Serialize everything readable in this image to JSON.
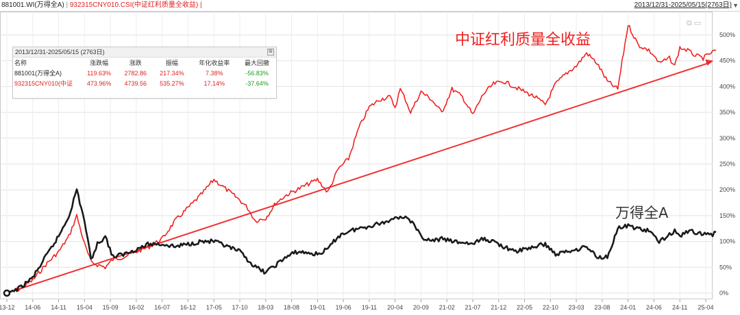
{
  "header": {
    "series1_label": "881001.WI(万得全A)",
    "separator": "|",
    "series2_label": "932315CNY010.CSI(中证红利质量全收益)",
    "separator2": "|",
    "range": "2013/12/31-2025/05/15(2763日)",
    "range_arrow": "▼"
  },
  "stats_panel": {
    "title": "2013/12/31-2025/05/15 (2763日)",
    "close": "⊠",
    "columns": [
      "名称",
      "涨跌幅",
      "涨跌",
      "振幅",
      "年化收益率",
      "最大回撤"
    ],
    "rows": [
      {
        "name": "881001(万得全A)",
        "change_pct": "119.63%",
        "change": "2782.86",
        "amplitude": "217.34%",
        "annual_return": "7.38%",
        "max_drawdown": "-56.83%"
      },
      {
        "name": "932315CNY010(中证",
        "change_pct": "473.96%",
        "change": "4739.56",
        "amplitude": "535.27%",
        "annual_return": "17.14%",
        "max_drawdown": "-37.64%"
      }
    ]
  },
  "window_icons": "⧉ ▭",
  "colors": {
    "red": "#f02020",
    "black": "#1a1a1a",
    "grid": "#e2e2e2",
    "trend": "#f03030"
  },
  "chart_data": {
    "type": "line",
    "title": "",
    "xlabel": "",
    "ylabel": "",
    "ylim": [
      -10,
      520
    ],
    "y_ticks": [
      "0%",
      "50%",
      "100%",
      "150%",
      "200%",
      "250%",
      "300%",
      "350%",
      "400%",
      "450%",
      "500%"
    ],
    "y_tick_values": [
      0,
      50,
      100,
      150,
      200,
      250,
      300,
      350,
      400,
      450,
      500
    ],
    "x_ticks": [
      "13-12",
      "14-06",
      "14-11",
      "15-04",
      "15-09",
      "16-02",
      "16-07",
      "16-12",
      "17-05",
      "17-10",
      "18-03",
      "18-08",
      "19-01",
      "19-06",
      "19-11",
      "20-04",
      "20-09",
      "21-02",
      "21-07",
      "21-12",
      "22-05",
      "22-10",
      "23-03",
      "23-08",
      "24-01",
      "24-06",
      "24-11",
      "25-04"
    ],
    "grid": true,
    "annotations": [
      {
        "text": "中证红利质量全收益",
        "color": "#f02020",
        "series": "red"
      },
      {
        "text": "万得全A",
        "color": "#333333",
        "series": "black"
      }
    ],
    "trendline": {
      "from": [
        0,
        0
      ],
      "to": [
        27.3,
        450
      ]
    },
    "series": [
      {
        "key": "red",
        "color": "#f02020",
        "x": [
          0,
          0.5,
          1,
          1.5,
          2,
          2.4,
          2.7,
          3,
          3.25,
          3.5,
          3.8,
          4.1,
          4.5,
          5,
          5.5,
          6,
          6.5,
          7,
          7.5,
          8,
          8.5,
          9,
          9.3,
          9.6,
          10,
          10.4,
          10.8,
          11.2,
          11.6,
          12,
          12.4,
          12.8,
          13.2,
          13.6,
          14,
          14.4,
          14.8,
          15,
          15.2,
          15.4,
          15.6,
          16,
          16.4,
          16.8,
          17.2,
          17.6,
          18,
          18.4,
          18.8,
          19.2,
          19.6,
          20,
          20.4,
          20.8,
          21.2,
          21.6,
          22,
          22.4,
          22.8,
          23.2,
          23.6,
          24,
          24.4,
          24.8,
          25,
          25.2,
          25.4,
          25.6,
          25.8,
          26,
          26.3,
          26.6,
          26.9,
          27.2,
          27.4
        ],
        "y": [
          0,
          8,
          25,
          55,
          80,
          110,
          150,
          95,
          60,
          55,
          50,
          65,
          70,
          80,
          90,
          105,
          140,
          165,
          190,
          220,
          200,
          180,
          165,
          140,
          145,
          175,
          190,
          200,
          210,
          220,
          195,
          240,
          260,
          320,
          360,
          375,
          380,
          360,
          395,
          375,
          350,
          390,
          375,
          350,
          395,
          380,
          345,
          385,
          405,
          410,
          400,
          390,
          380,
          365,
          405,
          425,
          440,
          465,
          445,
          410,
          395,
          520,
          480,
          470,
          460,
          445,
          450,
          455,
          440,
          475,
          470,
          460,
          455,
          465,
          470
        ]
      },
      {
        "key": "black",
        "color": "#1a1a1a",
        "x": [
          0,
          0.5,
          1,
          1.5,
          2,
          2.4,
          2.7,
          3,
          3.25,
          3.5,
          3.8,
          4.1,
          4.5,
          5,
          5.5,
          6,
          6.5,
          7,
          7.5,
          8,
          8.5,
          9,
          9.3,
          9.6,
          10,
          10.4,
          10.8,
          11.2,
          11.6,
          12,
          12.4,
          12.8,
          13.2,
          13.6,
          14,
          14.4,
          14.8,
          15,
          15.2,
          15.4,
          15.6,
          16,
          16.4,
          16.8,
          17.2,
          17.6,
          18,
          18.4,
          18.8,
          19.2,
          19.6,
          20,
          20.4,
          20.8,
          21.2,
          21.6,
          22,
          22.4,
          22.8,
          23.2,
          23.6,
          24,
          24.4,
          24.8,
          25,
          25.2,
          25.4,
          25.6,
          25.8,
          26,
          26.3,
          26.6,
          26.9,
          27.2,
          27.4
        ],
        "y": [
          0,
          10,
          30,
          70,
          110,
          150,
          200,
          140,
          65,
          95,
          110,
          70,
          75,
          85,
          95,
          95,
          90,
          95,
          100,
          100,
          90,
          80,
          65,
          50,
          40,
          55,
          70,
          80,
          78,
          75,
          85,
          110,
          120,
          125,
          130,
          135,
          140,
          150,
          145,
          150,
          140,
          110,
          100,
          105,
          100,
          98,
          95,
          105,
          100,
          90,
          80,
          85,
          90,
          95,
          75,
          80,
          85,
          90,
          70,
          70,
          125,
          130,
          125,
          120,
          110,
          100,
          105,
          115,
          120,
          110,
          120,
          118,
          115,
          112,
          118
        ]
      }
    ]
  }
}
